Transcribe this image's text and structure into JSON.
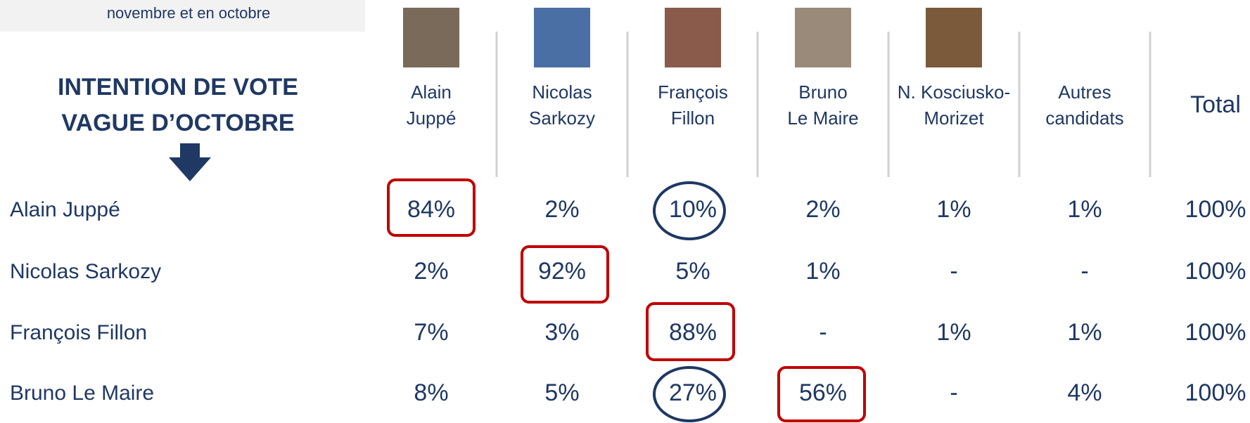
{
  "header_note": "novembre et en octobre",
  "title_lines": [
    "INTENTION DE VOTE",
    "VAGUE D’OCTOBRE"
  ],
  "columns": [
    [
      "Alain",
      "Juppé"
    ],
    [
      "Nicolas",
      "Sarkozy"
    ],
    [
      "François",
      "Fillon"
    ],
    [
      "Bruno",
      "Le Maire"
    ],
    [
      "N. Kosciusko-",
      "Morizet"
    ],
    [
      "Autres",
      "candidats"
    ],
    [
      "Total"
    ]
  ],
  "rows": [
    {
      "label": "Alain Juppé",
      "cells": [
        "84%",
        "2%",
        "10%",
        "2%",
        "1%",
        "1%",
        "100%"
      ]
    },
    {
      "label": "Nicolas Sarkozy",
      "cells": [
        "2%",
        "92%",
        "5%",
        "1%",
        "-",
        "-",
        "100%"
      ]
    },
    {
      "label": "François Fillon",
      "cells": [
        "7%",
        "3%",
        "88%",
        "-",
        "1%",
        "1%",
        "100%"
      ]
    },
    {
      "label": "Bruno Le Maire",
      "cells": [
        "8%",
        "5%",
        "27%",
        "56%",
        "-",
        "4%",
        "100%"
      ]
    }
  ]
}
